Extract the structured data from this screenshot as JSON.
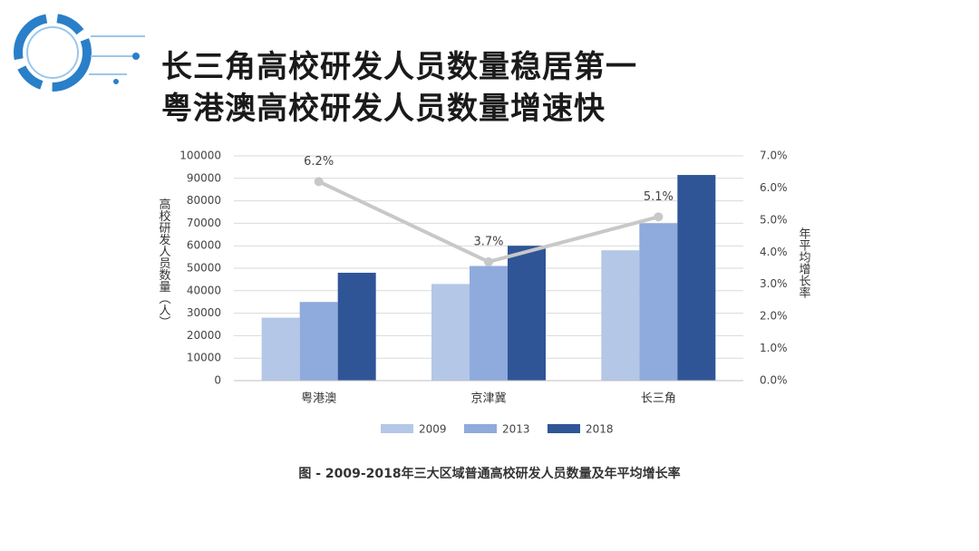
{
  "header": {
    "title_lines": [
      "长三角高校研发人员数量稳居第一",
      "粤港澳高校研发人员数量增速快"
    ]
  },
  "chart_data": {
    "type": "bar",
    "categories": [
      "粤港澳",
      "京津冀",
      "长三角"
    ],
    "y_label": "高校研发人员数量（人）",
    "y2_label": "年平均增长率",
    "ylim": [
      0,
      100000
    ],
    "yticks": [
      0,
      10000,
      20000,
      30000,
      40000,
      50000,
      60000,
      70000,
      80000,
      90000,
      100000
    ],
    "y2lim": [
      0,
      7
    ],
    "y2ticks": [
      {
        "value": 0,
        "label": "0.0%"
      },
      {
        "value": 1,
        "label": "1.0%"
      },
      {
        "value": 2,
        "label": "2.0%"
      },
      {
        "value": 3,
        "label": "3.0%"
      },
      {
        "value": 4,
        "label": "4.0%"
      },
      {
        "value": 5,
        "label": "5.0%"
      },
      {
        "value": 6,
        "label": "6.0%"
      },
      {
        "value": 7,
        "label": "7.0%"
      }
    ],
    "grid": true,
    "legend": "bottom",
    "series": [
      {
        "name": "2009",
        "color": "#b4c7e7",
        "values": [
          28000,
          43000,
          58000
        ]
      },
      {
        "name": "2013",
        "color": "#8faadc",
        "values": [
          35000,
          51000,
          70000
        ]
      },
      {
        "name": "2018",
        "color": "#2f5597",
        "values": [
          48000,
          60000,
          91500
        ]
      },
      {
        "name": "年平均增长率",
        "type": "line",
        "axis": "y2",
        "color": "#c8c8c8",
        "values": [
          6.2,
          3.7,
          5.1
        ],
        "value_labels": [
          "6.2%",
          "3.7%",
          "5.1%"
        ]
      }
    ]
  },
  "caption": "图 - 2009-2018年三大区域普通高校研发人员数量及年平均增长率"
}
